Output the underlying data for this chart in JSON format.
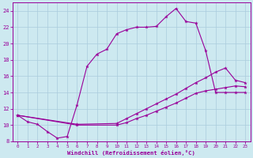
{
  "xlabel": "Windchill (Refroidissement éolien,°C)",
  "bg_color": "#cde9f0",
  "line_color": "#990099",
  "grid_color": "#aaccdd",
  "xlim": [
    -0.5,
    23.5
  ],
  "ylim": [
    8,
    25
  ],
  "xticks": [
    0,
    1,
    2,
    3,
    4,
    5,
    6,
    7,
    8,
    9,
    10,
    11,
    12,
    13,
    14,
    15,
    16,
    17,
    18,
    19,
    20,
    21,
    22,
    23
  ],
  "yticks": [
    8,
    10,
    12,
    14,
    16,
    18,
    20,
    22,
    24
  ],
  "curve1_x": [
    0,
    1,
    2,
    3,
    4,
    5,
    6,
    7,
    8,
    9,
    10,
    11,
    12,
    13,
    14,
    15,
    16,
    17,
    18,
    19,
    20,
    21,
    22,
    23
  ],
  "curve1_y": [
    11.2,
    10.4,
    10.1,
    9.2,
    8.4,
    8.6,
    12.5,
    17.2,
    18.7,
    19.3,
    21.2,
    21.7,
    22.0,
    22.0,
    22.1,
    23.3,
    24.3,
    22.7,
    22.5,
    19.1,
    14.0,
    14.0,
    14.0,
    14.0
  ],
  "curve2_x": [
    0,
    6,
    10,
    11,
    12,
    13,
    14,
    15,
    16,
    17,
    18,
    19,
    20,
    21,
    22,
    23
  ],
  "curve2_y": [
    11.2,
    10.1,
    10.2,
    10.8,
    11.4,
    12.0,
    12.6,
    13.2,
    13.8,
    14.5,
    15.2,
    15.8,
    16.5,
    17.0,
    15.5,
    15.2
  ],
  "curve3_x": [
    0,
    6,
    10,
    11,
    12,
    13,
    14,
    15,
    16,
    17,
    18,
    19,
    20,
    21,
    22,
    23
  ],
  "curve3_y": [
    11.2,
    10.0,
    10.0,
    10.3,
    10.8,
    11.2,
    11.7,
    12.2,
    12.7,
    13.3,
    13.9,
    14.2,
    14.4,
    14.6,
    14.8,
    14.7
  ]
}
